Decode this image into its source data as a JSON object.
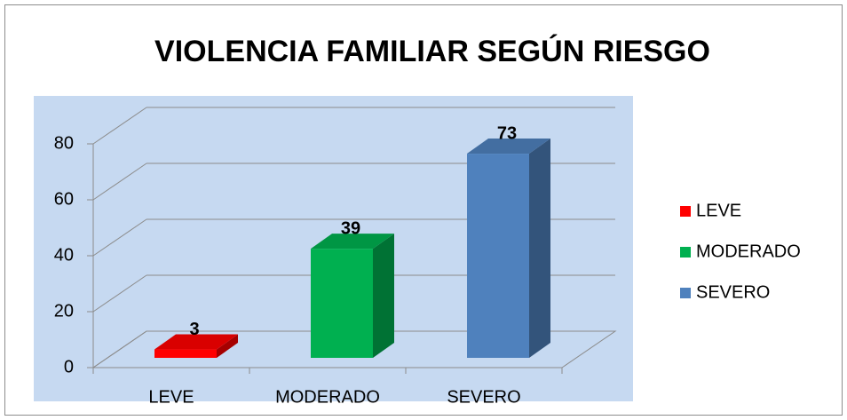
{
  "chart_data": {
    "type": "bar3d",
    "title": "VIOLENCIA FAMILIAR SEGÚN RIESGO",
    "categories": [
      "LEVE",
      "MODERADO",
      "SEVERO"
    ],
    "values": [
      3,
      39,
      73
    ],
    "colors": [
      "#ff0000",
      "#00b050",
      "#4f81bd"
    ],
    "ylim": [
      0,
      80
    ],
    "yticks": [
      0,
      20,
      40,
      60,
      80
    ],
    "grid": true,
    "legend": "right"
  }
}
